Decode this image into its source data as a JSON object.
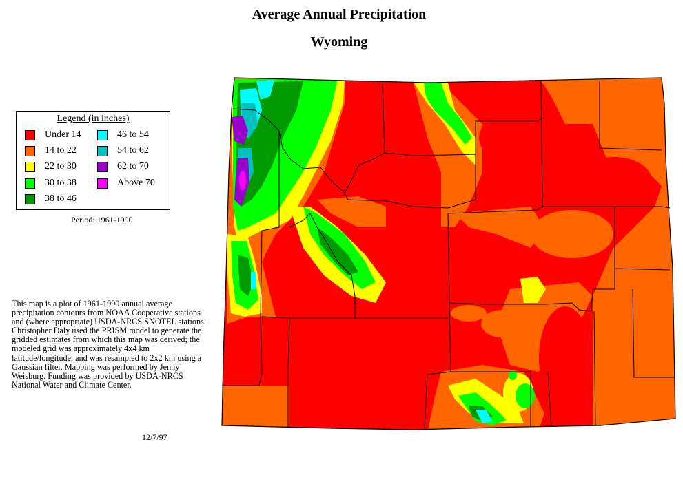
{
  "title": "Average Annual Precipitation",
  "subtitle": "Wyoming",
  "legend": {
    "heading": "Legend (in inches)",
    "items": [
      {
        "label": "Under 14",
        "color": "#ff0000"
      },
      {
        "label": "14 to 22",
        "color": "#ff6600"
      },
      {
        "label": "22 to 30",
        "color": "#ffff00"
      },
      {
        "label": "30 to 38",
        "color": "#00ff00"
      },
      {
        "label": "38 to 46",
        "color": "#009900"
      },
      {
        "label": "46 to 54",
        "color": "#00ffff"
      },
      {
        "label": "54 to 62",
        "color": "#00c0c0"
      },
      {
        "label": "62 to 70",
        "color": "#9900cc"
      },
      {
        "label": "Above 70",
        "color": "#ff00ff"
      }
    ]
  },
  "period": "Period: 1961-1990",
  "description": "This map is a plot of 1961-1990 annual average precipitation contours from NOAA Cooperative stations and (where appropriate) USDA-NRCS SNOTEL stations. Christopher Daly used the PRISM model to generate the gridded estimates from which this map was derived; the modeled grid was approximately 4x4 km latitude/longitude, and was resampled to 2x2 km using a Gaussian filter. Mapping was performed by Jenny Weisburg. Funding was provided by USDA-NRCS National Water and Climate Center.",
  "date": "12/7/97"
}
